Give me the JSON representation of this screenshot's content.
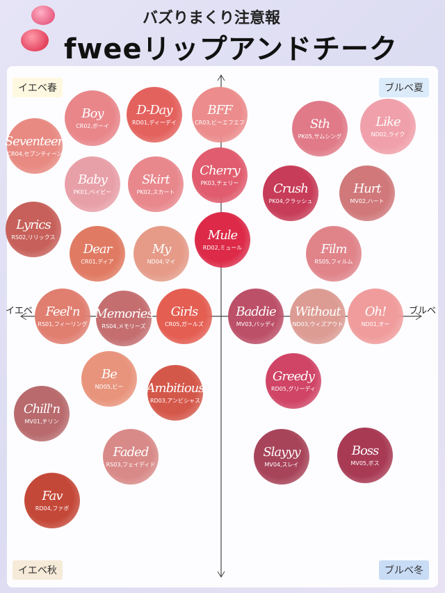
{
  "header": {
    "subtitle": "バズりまくり注意報",
    "title": "fweeリップアンドチーク"
  },
  "quadrants": {
    "top_left": "イエベ春",
    "top_right": "ブルベ夏",
    "bottom_left": "イエベ秋",
    "bottom_right": "ブルベ冬"
  },
  "axis": {
    "left": "イエベ",
    "right": "ブルベ"
  },
  "swatches": [
    {
      "name": "Boy",
      "code": "CR02,ボーイ",
      "color": "#e8868a"
    },
    {
      "name": "D-Day",
      "code": "RD01,ディーデイ",
      "color": "#e4625e"
    },
    {
      "name": "BFF",
      "code": "CR03,ビーエフエフ",
      "color": "#ec8c8c"
    },
    {
      "name": "Seventeen",
      "code": "CR04,セブンティーン",
      "color": "#e88a82"
    },
    {
      "name": "Baby",
      "code": "PK01,ベイビー",
      "color": "#e8a0a8"
    },
    {
      "name": "Skirt",
      "code": "PK02,スカート",
      "color": "#e8878c"
    },
    {
      "name": "Cherry",
      "code": "PK03,チェリー",
      "color": "#e05c6e"
    },
    {
      "name": "Lyrics",
      "code": "RS02,リリックス",
      "color": "#c7605a"
    },
    {
      "name": "Mule",
      "code": "RD02,ミュール",
      "color": "#dc2a48"
    },
    {
      "name": "Dear",
      "code": "CR01,ディア",
      "color": "#e07a62"
    },
    {
      "name": "My",
      "code": "ND04,マイ",
      "color": "#e59b88"
    },
    {
      "name": "Sth",
      "code": "PK05,サムシング",
      "color": "#e07a88"
    },
    {
      "name": "Like",
      "code": "ND02,ライク",
      "color": "#f0a0aa"
    },
    {
      "name": "Crush",
      "code": "PK04,クラッシュ",
      "color": "#c73c58"
    },
    {
      "name": "Hurt",
      "code": "MV02,ハート",
      "color": "#d0787a"
    },
    {
      "name": "Film",
      "code": "RS05,フィルム",
      "color": "#e0848a"
    },
    {
      "name": "Feel'n",
      "code": "RS01,フィーリング",
      "color": "#e07e70"
    },
    {
      "name": "Memories",
      "code": "RS04,メモリーズ",
      "color": "#c46e70"
    },
    {
      "name": "Girls",
      "code": "CR05,ガールズ",
      "color": "#e45e52"
    },
    {
      "name": "Baddie",
      "code": "MV03,バッディ",
      "color": "#bc5068"
    },
    {
      "name": "Without",
      "code": "ND03,ウィズアウト",
      "color": "#dc9c94"
    },
    {
      "name": "Oh!",
      "code": "ND01,オー",
      "color": "#f09c9c"
    },
    {
      "name": "Be",
      "code": "ND05,ビー",
      "color": "#e8947c"
    },
    {
      "name": "Ambitious",
      "code": "RD03,アンビシャス",
      "color": "#d4584a"
    },
    {
      "name": "Greedy",
      "code": "RD05,グリーディ",
      "color": "#d04466"
    },
    {
      "name": "Chill'n",
      "code": "MV01,チリン",
      "color": "#b86a6c"
    },
    {
      "name": "Faded",
      "code": "RS03,フェイディド",
      "color": "#d88a88"
    },
    {
      "name": "Slayyy",
      "code": "MV04,スレイ",
      "color": "#a8445a"
    },
    {
      "name": "Boss",
      "code": "MV05,ボス",
      "color": "#a83a54"
    },
    {
      "name": "Fav",
      "code": "RD04,ファボ",
      "color": "#c44838"
    }
  ]
}
